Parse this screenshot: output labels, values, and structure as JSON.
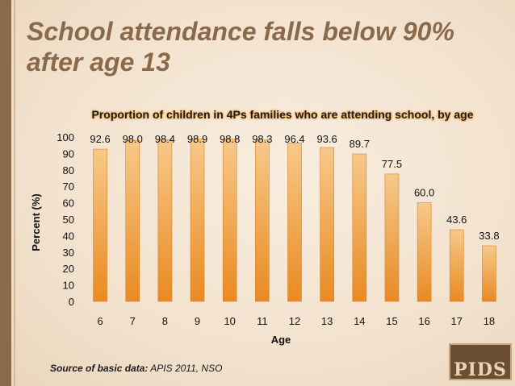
{
  "slide": {
    "title_line1": "School attendance falls below 90%",
    "title_line2": "after age 13"
  },
  "chart_data": {
    "type": "bar",
    "title": "Proportion of children in 4Ps families who are attending school, by age",
    "xlabel": "Age",
    "ylabel": "Percent (%)",
    "ylim": [
      0,
      100
    ],
    "yticks": [
      0,
      10,
      20,
      30,
      40,
      50,
      60,
      70,
      80,
      90,
      100
    ],
    "categories": [
      "6",
      "7",
      "8",
      "9",
      "10",
      "11",
      "12",
      "13",
      "14",
      "15",
      "16",
      "17",
      "18"
    ],
    "values": [
      92.6,
      98.0,
      98.4,
      98.9,
      98.8,
      98.3,
      96.4,
      93.6,
      89.7,
      77.5,
      60.0,
      43.6,
      33.8
    ],
    "grid": false,
    "bar_color_top": "#f7c98a",
    "bar_color_bottom": "#e98a22"
  },
  "source": {
    "label": "Source of basic data:",
    "text": "APIS 2011, NSO"
  },
  "logo": {
    "text": "PIDS"
  },
  "colors": {
    "title": "#8a6a4a",
    "accent_bar": "#8a6a4a"
  }
}
